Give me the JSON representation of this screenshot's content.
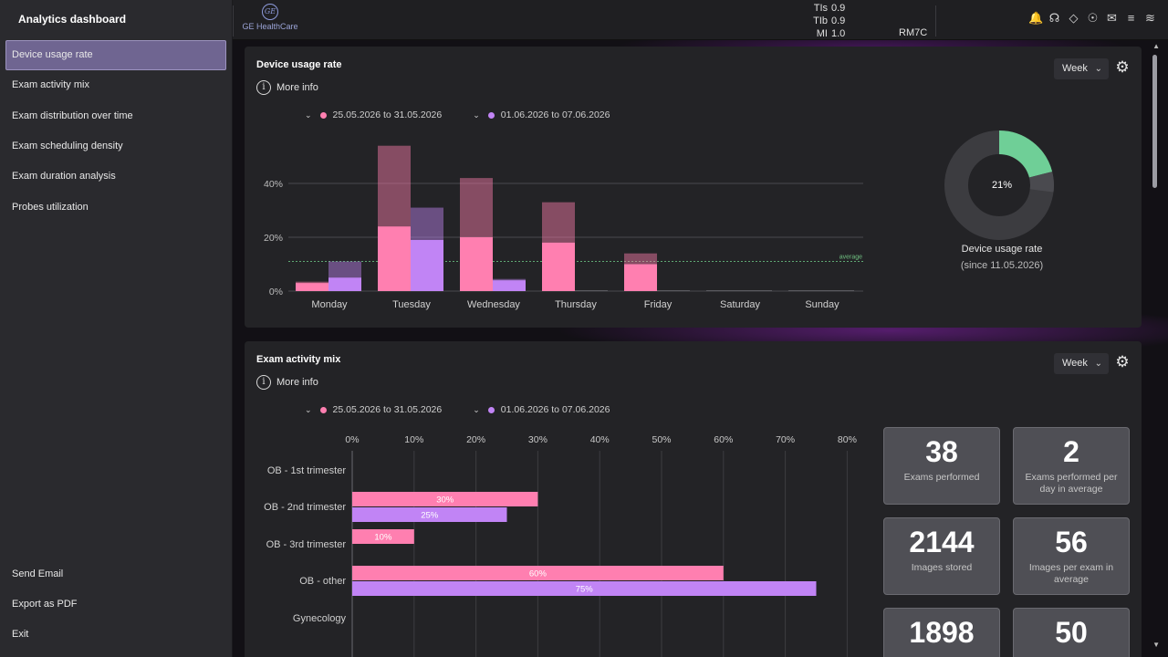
{
  "app_title": "Analytics dashboard",
  "sidebar": {
    "items": [
      {
        "label": "Device usage rate",
        "active": true
      },
      {
        "label": "Exam activity mix"
      },
      {
        "label": "Exam distribution over time"
      },
      {
        "label": "Exam scheduling density"
      },
      {
        "label": "Exam duration analysis"
      },
      {
        "label": "Probes utilization"
      }
    ],
    "bottom_items": [
      {
        "label": "Send Email"
      },
      {
        "label": "Export as PDF"
      },
      {
        "label": "Exit"
      }
    ]
  },
  "header": {
    "brand": "GE HealthCare",
    "brand_mark": "GE",
    "indices": [
      {
        "key": "TIs",
        "value": "0.9"
      },
      {
        "key": "TIb",
        "value": "0.9"
      },
      {
        "key": "MI",
        "value": "1.0"
      }
    ],
    "probe": "RM7C",
    "icons": [
      "bell-icon",
      "headset-icon",
      "tag-icon",
      "usb-icon",
      "mail-icon",
      "list-icon",
      "wifi-icon"
    ]
  },
  "colors": {
    "series1": "#ff7fb0",
    "series2": "#c184f5",
    "donut_highlight": "#6fcf97",
    "accent": "#6f6591"
  },
  "panel1": {
    "title": "Device usage rate",
    "more_info": "More info",
    "range_select": "Week",
    "legend": [
      {
        "label": "25.05.2026 to 31.05.2026",
        "color": "#ff7fb0"
      },
      {
        "label": "01.06.2026 to 07.06.2026",
        "color": "#c184f5"
      }
    ],
    "average_label": "average",
    "donut": {
      "value_label": "21%",
      "value": 21,
      "title": "Device usage rate",
      "subtitle": "(since 11.05.2026)"
    }
  },
  "panel2": {
    "title": "Exam activity mix",
    "more_info": "More info",
    "range_select": "Week",
    "legend": [
      {
        "label": "25.05.2026 to 31.05.2026",
        "color": "#ff7fb0"
      },
      {
        "label": "01.06.2026 to 07.06.2026",
        "color": "#c184f5"
      }
    ],
    "cards": [
      {
        "value": "38",
        "label": "Exams performed"
      },
      {
        "value": "2",
        "label": "Exams performed per day in average"
      },
      {
        "value": "2144",
        "label": "Images stored"
      },
      {
        "value": "56",
        "label": "Images per exam in average"
      },
      {
        "value": "1898",
        "label": ""
      },
      {
        "value": "50",
        "label": ""
      }
    ]
  },
  "chart_data": [
    {
      "type": "bar",
      "title": "Device usage rate",
      "categories": [
        "Monday",
        "Tuesday",
        "Wednesday",
        "Thursday",
        "Friday",
        "Saturday",
        "Sunday"
      ],
      "yticks": [
        "0%",
        "20%",
        "40%"
      ],
      "ylim": [
        0,
        60
      ],
      "average": 11,
      "series": [
        {
          "name": "25.05.2026 to 31.05.2026",
          "color": "#ff7fb0",
          "values": [
            3,
            24,
            20,
            18,
            10,
            0,
            0
          ],
          "total_values": [
            3.5,
            54,
            42,
            33,
            14,
            0,
            0
          ]
        },
        {
          "name": "01.06.2026 to 07.06.2026",
          "color": "#c184f5",
          "values": [
            5,
            19,
            4,
            0,
            0,
            0,
            0
          ],
          "total_values": [
            11,
            31,
            4.5,
            0,
            0,
            0,
            0
          ]
        }
      ]
    },
    {
      "type": "bar",
      "orientation": "horizontal",
      "title": "Exam activity mix",
      "categories": [
        "OB - 1st trimester",
        "OB - 2nd trimester",
        "OB - 3rd trimester",
        "OB - other",
        "Gynecology"
      ],
      "xticks": [
        "0%",
        "10%",
        "20%",
        "30%",
        "40%",
        "50%",
        "60%",
        "70%",
        "80%"
      ],
      "xlim": [
        0,
        80
      ],
      "series": [
        {
          "name": "25.05.2026 to 31.05.2026",
          "color": "#ff7fb0",
          "values": [
            0,
            30,
            10,
            60,
            0
          ],
          "labels": [
            "",
            "30%",
            "10%",
            "60%",
            ""
          ]
        },
        {
          "name": "01.06.2026 to 07.06.2026",
          "color": "#c184f5",
          "values": [
            0,
            25,
            0,
            75,
            0
          ],
          "labels": [
            "",
            "25%",
            "",
            "75%",
            ""
          ]
        }
      ]
    }
  ]
}
